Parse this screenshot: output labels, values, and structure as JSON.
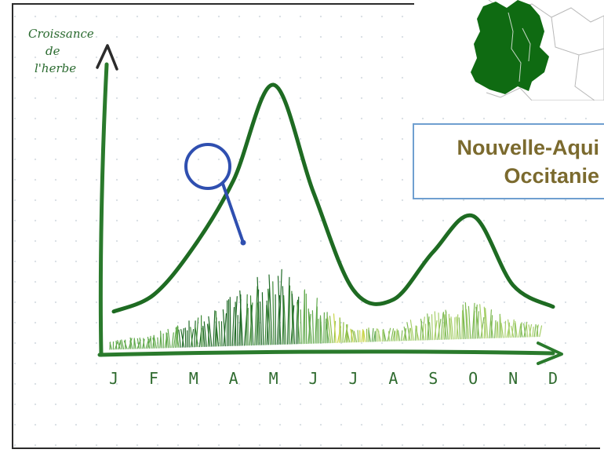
{
  "chart_data": {
    "type": "line",
    "ylabel_lines": [
      "Croissance",
      "de",
      "l'herbe"
    ],
    "categories": [
      "J",
      "F",
      "M",
      "A",
      "M",
      "J",
      "J",
      "A",
      "S",
      "O",
      "N",
      "D"
    ],
    "values": [
      5,
      12,
      32,
      60,
      100,
      55,
      14,
      10,
      30,
      45,
      16,
      7
    ],
    "grid": false,
    "line_color": "#1e6b22",
    "axis_color": "#2a7a2c"
  },
  "region": {
    "lines": [
      "Nouvelle-Aqui",
      "Occitanie"
    ],
    "text_color": "#7b6a2e",
    "border_color": "#6f9fd0"
  },
  "map": {
    "fill_color": "#0f6b12"
  },
  "magnifier": {
    "color": "#2f4fb0"
  }
}
